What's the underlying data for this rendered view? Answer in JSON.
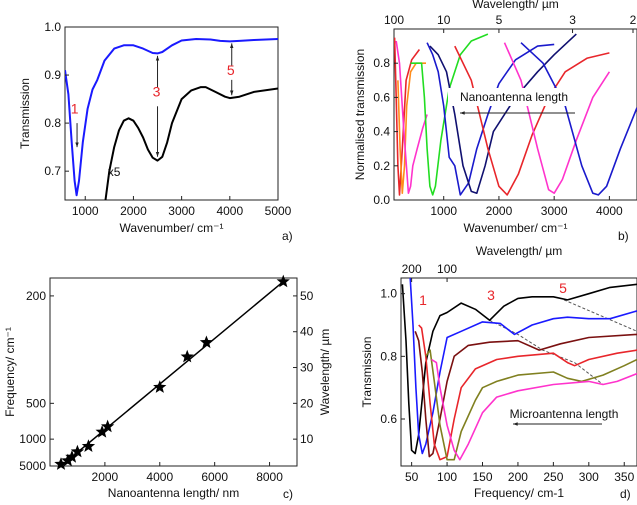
{
  "chart_data": [
    {
      "panel": "a)",
      "type": "line",
      "xlabel": "Wavenumber/ cm⁻¹",
      "ylabel": "Transmission",
      "xlim": [
        580,
        5000
      ],
      "ylim": [
        0.64,
        1.0
      ],
      "xticks": [
        "1000",
        "2000",
        "3000",
        "4000",
        "5000"
      ],
      "yticks": [
        "0.7",
        "0.8",
        "0.9",
        "1.0"
      ],
      "annotations": [
        "1",
        "3",
        "5",
        "x5"
      ],
      "series": [
        {
          "name": "blue",
          "color": "#1a1aff",
          "x": [
            580,
            650,
            720,
            780,
            820,
            870,
            950,
            1050,
            1150,
            1250,
            1400,
            1600,
            1800,
            2000,
            2200,
            2400,
            2500,
            2600,
            2800,
            3000,
            3300,
            3600,
            3800,
            4000,
            4200,
            4500,
            5000
          ],
          "y": [
            0.91,
            0.86,
            0.76,
            0.68,
            0.65,
            0.68,
            0.76,
            0.83,
            0.87,
            0.89,
            0.93,
            0.955,
            0.962,
            0.962,
            0.955,
            0.946,
            0.945,
            0.948,
            0.962,
            0.972,
            0.975,
            0.974,
            0.971,
            0.97,
            0.971,
            0.973,
            0.975
          ]
        },
        {
          "name": "black x5",
          "color": "#000000",
          "x": [
            1420,
            1500,
            1600,
            1700,
            1800,
            1900,
            2000,
            2100,
            2200,
            2300,
            2400,
            2500,
            2600,
            2700,
            2800,
            3000,
            3200,
            3400,
            3500,
            3700,
            3900,
            4000,
            4200,
            4500,
            5000
          ],
          "y": [
            0.64,
            0.7,
            0.75,
            0.785,
            0.805,
            0.81,
            0.805,
            0.79,
            0.77,
            0.745,
            0.728,
            0.722,
            0.73,
            0.76,
            0.8,
            0.85,
            0.868,
            0.875,
            0.875,
            0.865,
            0.855,
            0.852,
            0.855,
            0.865,
            0.872
          ]
        }
      ]
    },
    {
      "panel": "b)",
      "type": "line",
      "xlabel": "Wavenumber/ cm⁻¹",
      "ylabel": "Normalised transmission",
      "top_xlabel": "Wavelength/ µm",
      "xlim": [
        100,
        4500
      ],
      "ylim": [
        0,
        1.0
      ],
      "xticks": [
        "1000",
        "2000",
        "3000",
        "4000"
      ],
      "yticks": [
        "0.0",
        "0.2",
        "0.4",
        "0.6",
        "0.8"
      ],
      "top_ticks": [
        {
          "label": "100",
          "wn": 100
        },
        {
          "label": "10",
          "wn": 1000
        },
        {
          "label": "5",
          "wn": 2000
        },
        {
          "label": "3",
          "wn": 3333
        },
        {
          "label": "2",
          "wn": 5000
        }
      ],
      "annotation": "Nanoantenna length",
      "series": [
        {
          "color": "#e8262b",
          "x": [
            110,
            140,
            170,
            200,
            250,
            320,
            420,
            560
          ],
          "y": [
            0.95,
            0.6,
            0.2,
            0.03,
            0.3,
            0.7,
            0.82,
            0.88
          ]
        },
        {
          "color": "#ff8c1a",
          "x": [
            170,
            210,
            250,
            290,
            330,
            400,
            500,
            680
          ],
          "y": [
            0.7,
            0.3,
            0.04,
            0.2,
            0.55,
            0.75,
            0.8,
            0.8
          ]
        },
        {
          "color": "#ff33cc",
          "x": [
            140,
            200,
            280,
            360,
            400,
            440,
            520,
            620,
            700
          ],
          "y": [
            0.93,
            0.8,
            0.4,
            0.04,
            0.08,
            0.2,
            0.3,
            0.42,
            0.5
          ]
        },
        {
          "color": "#22dd22",
          "x": [
            400,
            600,
            650,
            700,
            750,
            800,
            850,
            950,
            1100,
            1300,
            1500,
            1800
          ],
          "y": [
            0.8,
            0.8,
            0.6,
            0.3,
            0.08,
            0.03,
            0.08,
            0.35,
            0.65,
            0.85,
            0.93,
            0.97
          ]
        },
        {
          "color": "#1a1acc",
          "x": [
            700,
            800,
            900,
            1000,
            1100,
            1200,
            1300,
            1450,
            1600,
            1800,
            2000,
            2300,
            2700,
            3000
          ],
          "y": [
            0.92,
            0.85,
            0.75,
            0.55,
            0.25,
            0.2,
            0.03,
            0.1,
            0.3,
            0.5,
            0.68,
            0.82,
            0.9,
            0.91
          ]
        },
        {
          "color": "#101070",
          "x": [
            750,
            900,
            1050,
            1200,
            1350,
            1500,
            1600,
            1750,
            1900,
            2300,
            2700,
            3000,
            3400
          ],
          "y": [
            0.9,
            0.85,
            0.75,
            0.5,
            0.2,
            0.05,
            0.04,
            0.2,
            0.4,
            0.6,
            0.75,
            0.85,
            0.97
          ]
        },
        {
          "color": "#e8262b",
          "x": [
            1200,
            1500,
            1800,
            2000,
            2150,
            2350,
            2600,
            2900,
            3200,
            3600,
            4000
          ],
          "y": [
            0.9,
            0.7,
            0.3,
            0.08,
            0.03,
            0.15,
            0.38,
            0.6,
            0.75,
            0.83,
            0.86
          ]
        },
        {
          "color": "#ff33cc",
          "x": [
            2100,
            2400,
            2700,
            2900,
            3000,
            3150,
            3400,
            3700,
            4000
          ],
          "y": [
            0.92,
            0.7,
            0.3,
            0.06,
            0.04,
            0.12,
            0.35,
            0.6,
            0.75
          ]
        },
        {
          "color": "#1a1acc",
          "x": [
            2400,
            2800,
            3200,
            3500,
            3700,
            3800,
            3950,
            4200,
            4500
          ],
          "y": [
            0.92,
            0.8,
            0.55,
            0.2,
            0.04,
            0.03,
            0.08,
            0.3,
            0.54
          ]
        }
      ]
    },
    {
      "panel": "c)",
      "type": "scatter",
      "xlabel": "Nanoantenna length/ nm",
      "ylabel": "Frequency/ cm⁻¹",
      "y2label": "Wavelength/ µm",
      "xlim": [
        0,
        9000
      ],
      "y2lim": [
        2.5,
        55
      ],
      "xticks": [
        "2000",
        "4000",
        "6000",
        "8000"
      ],
      "y2ticks": [
        "10",
        "20",
        "30",
        "40",
        "50"
      ],
      "left_ticks": [
        {
          "label": "200",
          "um": 50
        },
        {
          "label": "500",
          "um": 20
        },
        {
          "label": "1000",
          "um": 10
        },
        {
          "label": "5000",
          "um": 2.5
        }
      ],
      "marker": "star",
      "points": {
        "length_nm": [
          400,
          650,
          800,
          1000,
          1400,
          1900,
          2100,
          4000,
          5000,
          5700,
          8500
        ],
        "wavelength_um": [
          3,
          4,
          5,
          6.5,
          8,
          12,
          13.5,
          24.5,
          33,
          37,
          54
        ]
      },
      "fit_line": {
        "length_nm": [
          400,
          8500
        ],
        "wavelength_um": [
          2.5,
          54
        ]
      }
    },
    {
      "panel": "d)",
      "type": "line",
      "xlabel": "Frequency/ cm-1",
      "ylabel": "Transmission",
      "top_xlabel": "Wavelength/ µm",
      "xlim": [
        35,
        368
      ],
      "ylim": [
        0.45,
        1.05
      ],
      "xticks": [
        "50",
        "100",
        "150",
        "200",
        "250",
        "300",
        "350"
      ],
      "yticks": [
        "0.6",
        "0.8",
        "1.0"
      ],
      "top_ticks": [
        {
          "label": "200",
          "wn": 50
        },
        {
          "label": "100",
          "wn": 100
        }
      ],
      "annotations": [
        "1",
        "3",
        "5"
      ],
      "annotation": "Microantenna length",
      "series": [
        {
          "color": "#000000",
          "x": [
            37,
            42,
            46,
            50,
            55,
            60,
            70,
            80,
            90,
            100,
            120,
            140,
            160,
            180,
            200,
            220,
            250,
            270,
            300,
            330,
            368
          ],
          "y": [
            1.03,
            0.85,
            0.65,
            0.5,
            0.49,
            0.55,
            0.78,
            0.88,
            0.93,
            0.94,
            0.97,
            0.95,
            0.915,
            0.96,
            0.985,
            0.99,
            0.99,
            0.98,
            1.0,
            1.02,
            1.03
          ]
        },
        {
          "color": "#1a1aff",
          "x": [
            48,
            52,
            56,
            60,
            65,
            70,
            80,
            90,
            100,
            120,
            150,
            175,
            195,
            220,
            250,
            270,
            300,
            330,
            368
          ],
          "y": [
            1.05,
            0.9,
            0.7,
            0.55,
            0.49,
            0.52,
            0.62,
            0.75,
            0.86,
            0.88,
            0.91,
            0.905,
            0.87,
            0.9,
            0.92,
            0.925,
            0.92,
            0.92,
            0.945
          ]
        },
        {
          "color": "#7a1010",
          "x": [
            55,
            60,
            65,
            70,
            75,
            80,
            90,
            100,
            110,
            130,
            160,
            200,
            230,
            260,
            300,
            368
          ],
          "y": [
            0.88,
            0.85,
            0.75,
            0.6,
            0.48,
            0.49,
            0.6,
            0.72,
            0.8,
            0.835,
            0.845,
            0.85,
            0.82,
            0.84,
            0.86,
            0.87
          ]
        },
        {
          "color": "#e8262b",
          "x": [
            60,
            64,
            70,
            76,
            82,
            90,
            100,
            110,
            120,
            140,
            170,
            200,
            250,
            270,
            280,
            300,
            340,
            368
          ],
          "y": [
            0.9,
            0.89,
            0.8,
            0.65,
            0.52,
            0.47,
            0.48,
            0.6,
            0.7,
            0.76,
            0.79,
            0.8,
            0.81,
            0.78,
            0.77,
            0.79,
            0.81,
            0.82
          ]
        },
        {
          "color": "#808020",
          "x": [
            70,
            76,
            82,
            90,
            100,
            110,
            120,
            140,
            150,
            170,
            200,
            250,
            270,
            290,
            320,
            350,
            368
          ],
          "y": [
            0.8,
            0.82,
            0.72,
            0.58,
            0.47,
            0.47,
            0.56,
            0.66,
            0.7,
            0.72,
            0.74,
            0.75,
            0.73,
            0.72,
            0.74,
            0.77,
            0.79
          ]
        },
        {
          "color": "#ff33cc",
          "x": [
            78,
            85,
            90,
            100,
            110,
            118,
            130,
            150,
            170,
            200,
            250,
            300,
            320,
            340,
            368
          ],
          "y": [
            0.79,
            0.78,
            0.7,
            0.58,
            0.5,
            0.47,
            0.52,
            0.62,
            0.67,
            0.69,
            0.71,
            0.72,
            0.71,
            0.72,
            0.745
          ]
        }
      ],
      "dashed_guides": [
        {
          "x": [
            160,
            200,
            235,
            280,
            320
          ],
          "y": [
            0.915,
            0.87,
            0.82,
            0.78,
            0.71
          ]
        },
        {
          "x": [
            265,
            368
          ],
          "y": [
            0.98,
            0.88
          ]
        }
      ]
    }
  ],
  "panel_labels": [
    "a)",
    "b)",
    "c)",
    "d)"
  ]
}
